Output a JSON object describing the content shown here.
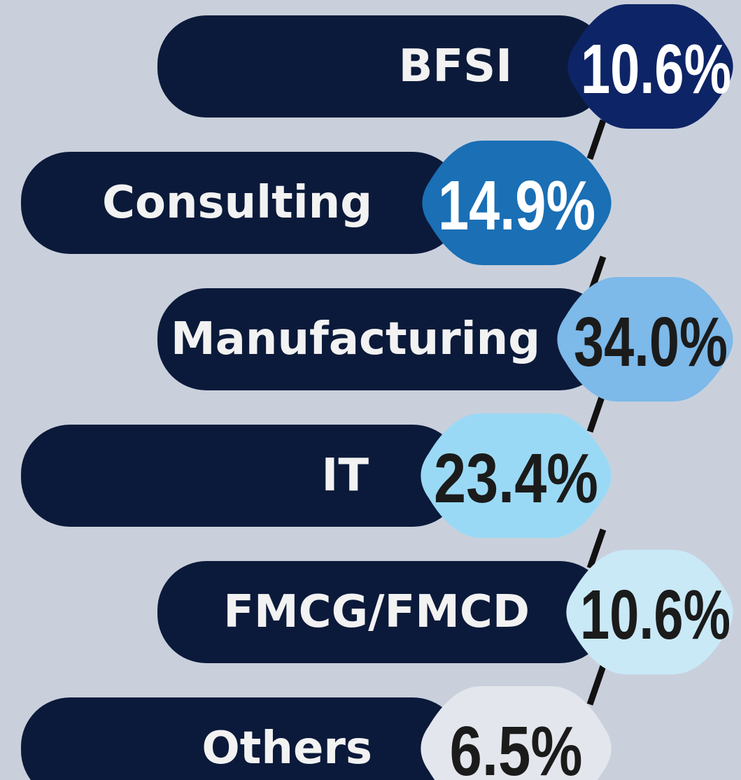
{
  "items": [
    {
      "label": "BFSI",
      "value": "10.6%"
    },
    {
      "label": "Consulting",
      "value": "14.9%"
    },
    {
      "label": "Manufacturing",
      "value": "34.0%"
    },
    {
      "label": "IT",
      "value": "23.4%"
    },
    {
      "label": "FMCG/FMCD",
      "value": "10.6%"
    },
    {
      "label": "Others",
      "value": "6.5%"
    }
  ]
}
